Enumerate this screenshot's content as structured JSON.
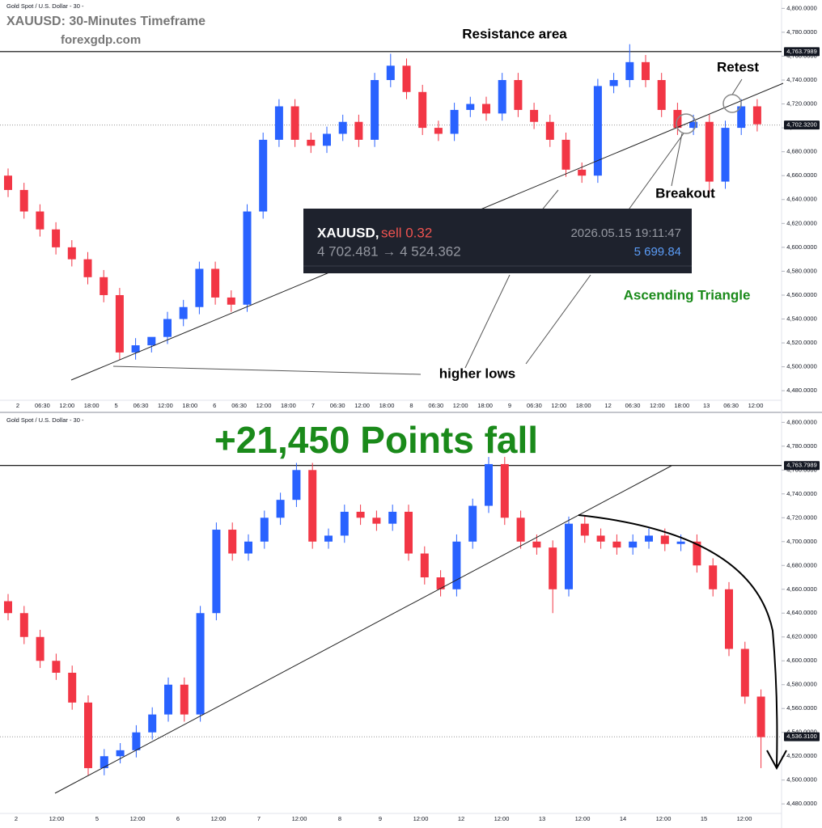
{
  "chart_data": [
    {
      "type": "candlestick",
      "symbol_label": "Gold Spot / U.S. Dollar - 30 -",
      "title": "XAUUSD: 30-Minutes Timeframe",
      "subtitle": "forexgdp.com",
      "resistance_label": "Resistance area",
      "retest_label": "Retest",
      "breakout_label": "Breakout",
      "pattern_label": "Ascending Triangle",
      "higher_lows_label": "higher lows",
      "tooltip": {
        "symbol": "XAUUSD,",
        "side": "sell 0.32",
        "time": "2026.05.15 19:11:47",
        "prices": "4 702.481 → 4 524.362",
        "profit": "5 699.84"
      },
      "up_color": "#2962ff",
      "down_color": "#f23645",
      "open": [
        4660,
        4648,
        4630,
        4615,
        4600,
        4590,
        4575,
        4560,
        4512,
        4518,
        4525,
        4540,
        4550,
        4582,
        4558,
        4552,
        4630,
        4690,
        4718,
        4690,
        4685,
        4695,
        4705,
        4690,
        4740,
        4752,
        4730,
        4700,
        4695,
        4715,
        4720,
        4712,
        4740,
        4715,
        4705,
        4690,
        4665,
        4660,
        4735,
        4740,
        4755,
        4740,
        4715,
        4700,
        4705,
        4655,
        4700,
        4718
      ],
      "high": [
        4666,
        4654,
        4636,
        4621,
        4606,
        4596,
        4581,
        4566,
        4524,
        4524,
        4546,
        4556,
        4588,
        4588,
        4564,
        4636,
        4696,
        4724,
        4724,
        4696,
        4701,
        4711,
        4711,
        4746,
        4762,
        4758,
        4736,
        4706,
        4721,
        4726,
        4726,
        4746,
        4746,
        4721,
        4711,
        4696,
        4671,
        4741,
        4746,
        4770,
        4761,
        4746,
        4721,
        4711,
        4711,
        4706,
        4724,
        4724
      ],
      "low": [
        4642,
        4624,
        4609,
        4594,
        4584,
        4569,
        4554,
        4506,
        4506,
        4512,
        4519,
        4534,
        4544,
        4552,
        4546,
        4546,
        4624,
        4684,
        4684,
        4679,
        4679,
        4689,
        4684,
        4684,
        4734,
        4724,
        4694,
        4689,
        4689,
        4709,
        4706,
        4706,
        4709,
        4699,
        4684,
        4659,
        4654,
        4654,
        4729,
        4734,
        4734,
        4709,
        4694,
        4694,
        4645,
        4649,
        4694,
        4697
      ],
      "close": [
        4648,
        4630,
        4615,
        4600,
        4590,
        4575,
        4560,
        4512,
        4518,
        4525,
        4540,
        4550,
        4582,
        4558,
        4552,
        4630,
        4690,
        4718,
        4690,
        4685,
        4695,
        4705,
        4690,
        4740,
        4752,
        4730,
        4700,
        4695,
        4715,
        4720,
        4712,
        4740,
        4715,
        4705,
        4690,
        4665,
        4660,
        4735,
        4740,
        4755,
        4740,
        4715,
        4700,
        4705,
        4655,
        4700,
        4718,
        4703
      ],
      "x_labels": [
        "2",
        "06:30",
        "12:00",
        "18:00",
        "5",
        "06:30",
        "12:00",
        "18:00",
        "6",
        "06:30",
        "12:00",
        "18:00",
        "7",
        "06:30",
        "12:00",
        "18:00",
        "8",
        "06:30",
        "12:00",
        "18:00",
        "9",
        "06:30",
        "12:00",
        "18:00",
        "12",
        "06:30",
        "12:00",
        "18:00",
        "13",
        "06:30",
        "12:00"
      ],
      "ylim": [
        4472,
        4807
      ],
      "yticks": [
        {
          "value": 4480,
          "label": "4,480.0000"
        },
        {
          "value": 4500,
          "label": "4,500.0000"
        },
        {
          "value": 4520,
          "label": "4,520.0000"
        },
        {
          "value": 4540,
          "label": "4,540.0000"
        },
        {
          "value": 4560,
          "label": "4,560.0000"
        },
        {
          "value": 4580,
          "label": "4,580.0000"
        },
        {
          "value": 4600,
          "label": "4,600.0000"
        },
        {
          "value": 4620,
          "label": "4,620.0000"
        },
        {
          "value": 4640,
          "label": "4,640.0000"
        },
        {
          "value": 4660,
          "label": "4,660.0000"
        },
        {
          "value": 4680,
          "label": "4,680.0000"
        },
        {
          "value": 4700,
          "label": "4,700.0000"
        },
        {
          "value": 4720,
          "label": "4,720.0000"
        },
        {
          "value": 4740,
          "label": "4,740.0000"
        },
        {
          "value": 4760,
          "label": "4,760.0000"
        },
        {
          "value": 4780,
          "label": "4,780.0000"
        },
        {
          "value": 4800,
          "label": "4,800.0000"
        }
      ],
      "levels": [
        {
          "value": 4763.7989,
          "label": "4,763.7989",
          "style": "solid"
        },
        {
          "value": 4702.32,
          "label": "4,702.3200",
          "style": "dotted"
        }
      ]
    },
    {
      "type": "candlestick",
      "symbol_label": "Gold Spot / U.S. Dollar - 30 -",
      "headline": "+21,450 Points fall",
      "up_color": "#2962ff",
      "down_color": "#f23645",
      "open": [
        4650,
        4640,
        4620,
        4600,
        4590,
        4565,
        4510,
        4520,
        4525,
        4540,
        4555,
        4580,
        4555,
        4640,
        4710,
        4690,
        4700,
        4720,
        4735,
        4760,
        4700,
        4705,
        4725,
        4720,
        4715,
        4725,
        4690,
        4670,
        4660,
        4700,
        4730,
        4765,
        4720,
        4700,
        4695,
        4660,
        4715,
        4705,
        4700,
        4695,
        4700,
        4705,
        4698,
        4700,
        4680,
        4660,
        4610,
        4570
      ],
      "high": [
        4656,
        4646,
        4626,
        4606,
        4596,
        4571,
        4526,
        4531,
        4546,
        4561,
        4586,
        4586,
        4646,
        4716,
        4716,
        4706,
        4726,
        4741,
        4766,
        4766,
        4711,
        4731,
        4731,
        4726,
        4731,
        4731,
        4696,
        4676,
        4706,
        4736,
        4771,
        4771,
        4726,
        4706,
        4701,
        4721,
        4721,
        4711,
        4706,
        4706,
        4711,
        4711,
        4706,
        4706,
        4686,
        4666,
        4616,
        4576
      ],
      "low": [
        4634,
        4614,
        4594,
        4584,
        4559,
        4504,
        4504,
        4514,
        4519,
        4534,
        4549,
        4549,
        4549,
        4634,
        4684,
        4684,
        4694,
        4714,
        4729,
        4694,
        4694,
        4699,
        4714,
        4709,
        4709,
        4684,
        4664,
        4654,
        4654,
        4694,
        4724,
        4714,
        4694,
        4689,
        4640,
        4654,
        4699,
        4694,
        4689,
        4689,
        4694,
        4692,
        4692,
        4674,
        4654,
        4604,
        4564,
        4510
      ],
      "close": [
        4640,
        4620,
        4600,
        4590,
        4565,
        4510,
        4520,
        4525,
        4540,
        4555,
        4580,
        4555,
        4640,
        4710,
        4690,
        4700,
        4720,
        4735,
        4760,
        4700,
        4705,
        4725,
        4720,
        4715,
        4725,
        4690,
        4670,
        4660,
        4700,
        4730,
        4765,
        4720,
        4700,
        4695,
        4660,
        4715,
        4705,
        4700,
        4695,
        4700,
        4705,
        4698,
        4700,
        4680,
        4660,
        4610,
        4570,
        4536
      ],
      "x_labels": [
        "2",
        "12:00",
        "5",
        "12:00",
        "6",
        "12:00",
        "7",
        "12:00",
        "8",
        "9",
        "12:00",
        "12",
        "12:00",
        "13",
        "12:00",
        "14",
        "12:00",
        "15",
        "12:00"
      ],
      "ylim": [
        4472,
        4807
      ],
      "yticks": [
        {
          "value": 4480,
          "label": "4,480.0000"
        },
        {
          "value": 4500,
          "label": "4,500.0000"
        },
        {
          "value": 4520,
          "label": "4,520.0000"
        },
        {
          "value": 4540,
          "label": "4,540.0000"
        },
        {
          "value": 4560,
          "label": "4,560.0000"
        },
        {
          "value": 4580,
          "label": "4,580.0000"
        },
        {
          "value": 4600,
          "label": "4,600.0000"
        },
        {
          "value": 4620,
          "label": "4,620.0000"
        },
        {
          "value": 4640,
          "label": "4,640.0000"
        },
        {
          "value": 4660,
          "label": "4,660.0000"
        },
        {
          "value": 4680,
          "label": "4,680.0000"
        },
        {
          "value": 4700,
          "label": "4,700.0000"
        },
        {
          "value": 4720,
          "label": "4,720.0000"
        },
        {
          "value": 4740,
          "label": "4,740.0000"
        },
        {
          "value": 4760,
          "label": "4,760.0000"
        },
        {
          "value": 4780,
          "label": "4,780.0000"
        },
        {
          "value": 4800,
          "label": "4,800.0000"
        }
      ],
      "levels": [
        {
          "value": 4763.7989,
          "label": "4,763.7989",
          "style": "solid"
        },
        {
          "value": 4536.31,
          "label": "4,536.3100",
          "style": "dotted"
        }
      ]
    }
  ]
}
